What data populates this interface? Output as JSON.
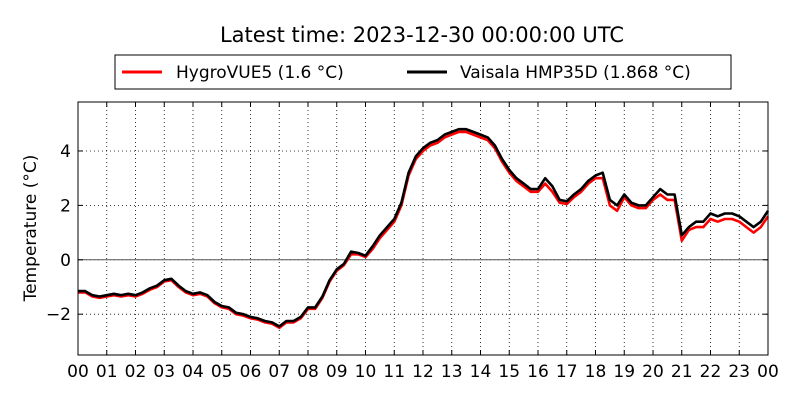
{
  "chart_data": {
    "type": "line",
    "title": "Latest time: 2023-12-30 00:00:00 UTC",
    "xlabel": "",
    "ylabel": "Temperature (°C)",
    "xlim": [
      0,
      24
    ],
    "ylim": [
      -3.5,
      5.8
    ],
    "x_tick_labels": [
      "00",
      "01",
      "02",
      "03",
      "04",
      "05",
      "06",
      "07",
      "08",
      "09",
      "10",
      "11",
      "12",
      "13",
      "14",
      "15",
      "16",
      "17",
      "18",
      "19",
      "20",
      "21",
      "22",
      "23",
      "00"
    ],
    "y_ticks": [
      -2,
      0,
      2,
      4
    ],
    "y_tick_labels": [
      "−2",
      "0",
      "2",
      "4"
    ],
    "grid": true,
    "zero_line": true,
    "legend_position": "top",
    "series": [
      {
        "name": "HygroVUE5 (1.6 °C)",
        "color": "#ff0000",
        "x": [
          0,
          0.25,
          0.5,
          0.75,
          1,
          1.25,
          1.5,
          1.75,
          2,
          2.25,
          2.5,
          2.75,
          3,
          3.25,
          3.5,
          3.75,
          4,
          4.25,
          4.5,
          4.75,
          5,
          5.25,
          5.5,
          5.75,
          6,
          6.25,
          6.5,
          6.75,
          7,
          7.25,
          7.5,
          7.75,
          8,
          8.25,
          8.5,
          8.75,
          9,
          9.25,
          9.5,
          9.75,
          10,
          10.25,
          10.5,
          10.75,
          11,
          11.25,
          11.5,
          11.75,
          12,
          12.25,
          12.5,
          12.75,
          13,
          13.25,
          13.5,
          13.75,
          14,
          14.25,
          14.5,
          14.75,
          15,
          15.25,
          15.5,
          15.75,
          16,
          16.25,
          16.5,
          16.75,
          17,
          17.25,
          17.5,
          17.75,
          18,
          18.25,
          18.5,
          18.75,
          19,
          19.25,
          19.5,
          19.75,
          20,
          20.25,
          20.5,
          20.75,
          21,
          21.25,
          21.5,
          21.75,
          22,
          22.25,
          22.5,
          22.75,
          23,
          23.25,
          23.5,
          23.75,
          24
        ],
        "y": [
          -1.2,
          -1.2,
          -1.35,
          -1.4,
          -1.35,
          -1.3,
          -1.35,
          -1.3,
          -1.35,
          -1.25,
          -1.1,
          -1.0,
          -0.8,
          -0.75,
          -1.0,
          -1.2,
          -1.3,
          -1.25,
          -1.35,
          -1.6,
          -1.75,
          -1.8,
          -2.0,
          -2.05,
          -2.15,
          -2.2,
          -2.3,
          -2.35,
          -2.5,
          -2.3,
          -2.3,
          -2.15,
          -1.8,
          -1.8,
          -1.4,
          -0.8,
          -0.4,
          -0.2,
          0.2,
          0.2,
          0.1,
          0.4,
          0.8,
          1.1,
          1.4,
          2.0,
          3.1,
          3.7,
          4.0,
          4.2,
          4.3,
          4.5,
          4.6,
          4.7,
          4.7,
          4.6,
          4.5,
          4.4,
          4.1,
          3.6,
          3.2,
          2.9,
          2.7,
          2.5,
          2.5,
          2.8,
          2.5,
          2.1,
          2.05,
          2.3,
          2.5,
          2.8,
          3.0,
          3.0,
          2.0,
          1.8,
          2.3,
          2.0,
          1.9,
          1.9,
          2.2,
          2.4,
          2.2,
          2.2,
          0.7,
          1.1,
          1.2,
          1.2,
          1.5,
          1.4,
          1.5,
          1.5,
          1.4,
          1.2,
          1.0,
          1.2,
          1.6
        ]
      },
      {
        "name": "Vaisala HMP35D (1.868 °C)",
        "color": "#000000",
        "x": [
          0,
          0.25,
          0.5,
          0.75,
          1,
          1.25,
          1.5,
          1.75,
          2,
          2.25,
          2.5,
          2.75,
          3,
          3.25,
          3.5,
          3.75,
          4,
          4.25,
          4.5,
          4.75,
          5,
          5.25,
          5.5,
          5.75,
          6,
          6.25,
          6.5,
          6.75,
          7,
          7.25,
          7.5,
          7.75,
          8,
          8.25,
          8.5,
          8.75,
          9,
          9.25,
          9.5,
          9.75,
          10,
          10.25,
          10.5,
          10.75,
          11,
          11.25,
          11.5,
          11.75,
          12,
          12.25,
          12.5,
          12.75,
          13,
          13.25,
          13.5,
          13.75,
          14,
          14.25,
          14.5,
          14.75,
          15,
          15.25,
          15.5,
          15.75,
          16,
          16.25,
          16.5,
          16.75,
          17,
          17.25,
          17.5,
          17.75,
          18,
          18.25,
          18.5,
          18.75,
          19,
          19.25,
          19.5,
          19.75,
          20,
          20.25,
          20.5,
          20.75,
          21,
          21.25,
          21.5,
          21.75,
          22,
          22.25,
          22.5,
          22.75,
          23,
          23.25,
          23.5,
          23.75,
          24
        ],
        "y": [
          -1.15,
          -1.15,
          -1.3,
          -1.35,
          -1.3,
          -1.25,
          -1.3,
          -1.25,
          -1.3,
          -1.2,
          -1.05,
          -0.95,
          -0.75,
          -0.7,
          -0.95,
          -1.15,
          -1.25,
          -1.2,
          -1.3,
          -1.55,
          -1.7,
          -1.75,
          -1.95,
          -2.0,
          -2.1,
          -2.15,
          -2.25,
          -2.3,
          -2.45,
          -2.25,
          -2.25,
          -2.1,
          -1.75,
          -1.75,
          -1.35,
          -0.75,
          -0.35,
          -0.15,
          0.3,
          0.25,
          0.15,
          0.5,
          0.9,
          1.2,
          1.5,
          2.1,
          3.2,
          3.8,
          4.1,
          4.3,
          4.4,
          4.6,
          4.7,
          4.8,
          4.8,
          4.7,
          4.6,
          4.5,
          4.2,
          3.7,
          3.3,
          3.0,
          2.8,
          2.6,
          2.6,
          3.0,
          2.7,
          2.2,
          2.15,
          2.4,
          2.6,
          2.9,
          3.1,
          3.2,
          2.2,
          2.0,
          2.4,
          2.1,
          2.0,
          2.0,
          2.3,
          2.6,
          2.4,
          2.4,
          0.9,
          1.2,
          1.4,
          1.4,
          1.7,
          1.6,
          1.7,
          1.7,
          1.6,
          1.4,
          1.2,
          1.4,
          1.8
        ]
      }
    ]
  }
}
